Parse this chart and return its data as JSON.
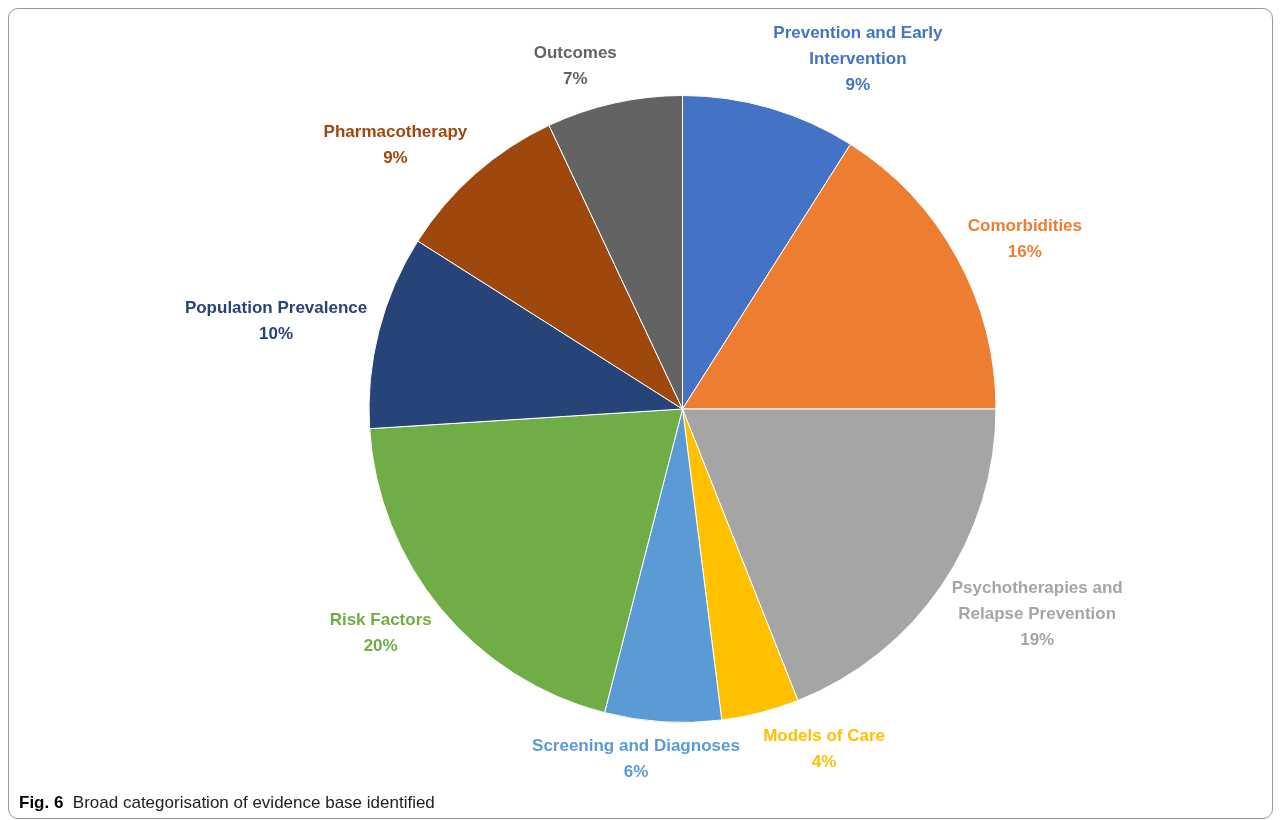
{
  "chart_data": {
    "type": "pie",
    "categories": [
      "Prevention and Early Intervention",
      "Comorbidities",
      "Psychotherapies and Relapse Prevention",
      "Models of Care",
      "Screening and Diagnoses",
      "Risk Factors",
      "Population Prevalence",
      "Pharmacotherapy",
      "Outcomes"
    ],
    "values": [
      9,
      16,
      19,
      4,
      6,
      20,
      10,
      9,
      7
    ],
    "colors": [
      "#4472c4",
      "#ed7d31",
      "#a5a5a5",
      "#ffc000",
      "#5b9bd5",
      "#70ad47",
      "#264478",
      "#9e480e",
      "#636363"
    ],
    "value_labels": [
      "9%",
      "16%",
      "19%",
      "4%",
      "6%",
      "20%",
      "10%",
      "9%",
      "7%"
    ],
    "legend": false,
    "annotations": [
      "Fig. 6 Broad categorisation of evidence base identified"
    ]
  }
}
